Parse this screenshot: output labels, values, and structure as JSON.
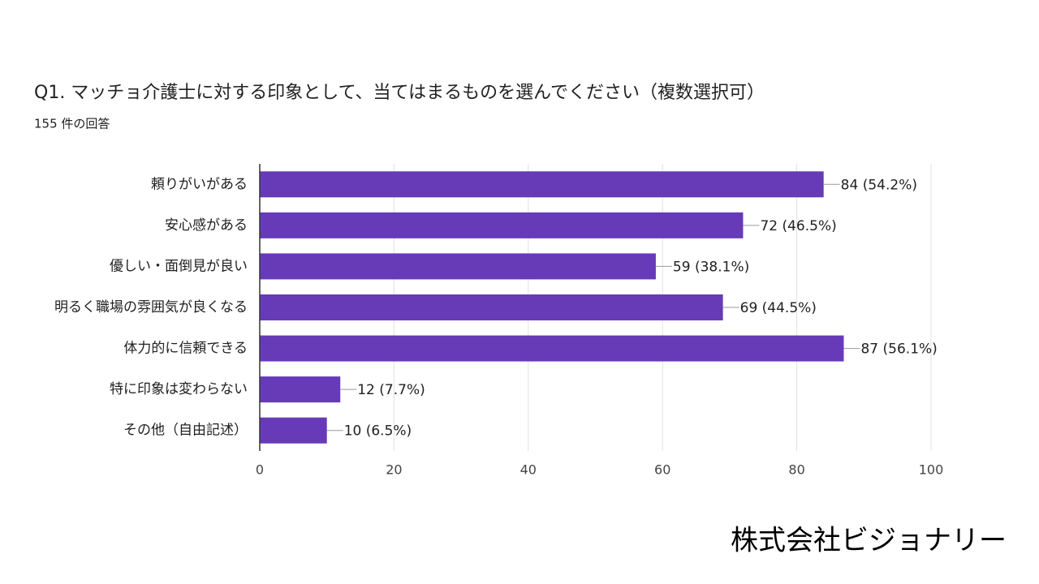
{
  "chart_data": {
    "type": "hbar",
    "title": "Q1. マッチョ介護士に対する印象として、当てはまるものを選んでください（複数選択可）",
    "subtitle": "155 件の回答",
    "categories": [
      "頼りがいがある",
      "安心感がある",
      "優しい・面倒見が良い",
      "明るく職場の雰囲気が良くなる",
      "体力的に信頼できる",
      "特に印象は変わらない",
      "その他（自由記述）"
    ],
    "values": [
      84,
      72,
      59,
      69,
      87,
      12,
      10
    ],
    "value_labels": [
      "84 (54.2%)",
      "72 (46.5%)",
      "59 (38.1%)",
      "69 (44.5%)",
      "87 (56.1%)",
      "12 (7.7%)",
      "10 (6.5%)"
    ],
    "color": "#673ab7",
    "xlim": [
      0,
      100
    ],
    "xticks": [
      0,
      20,
      40,
      60,
      80,
      100
    ],
    "grid": true
  },
  "footer": "株式会社ビジョナリー"
}
